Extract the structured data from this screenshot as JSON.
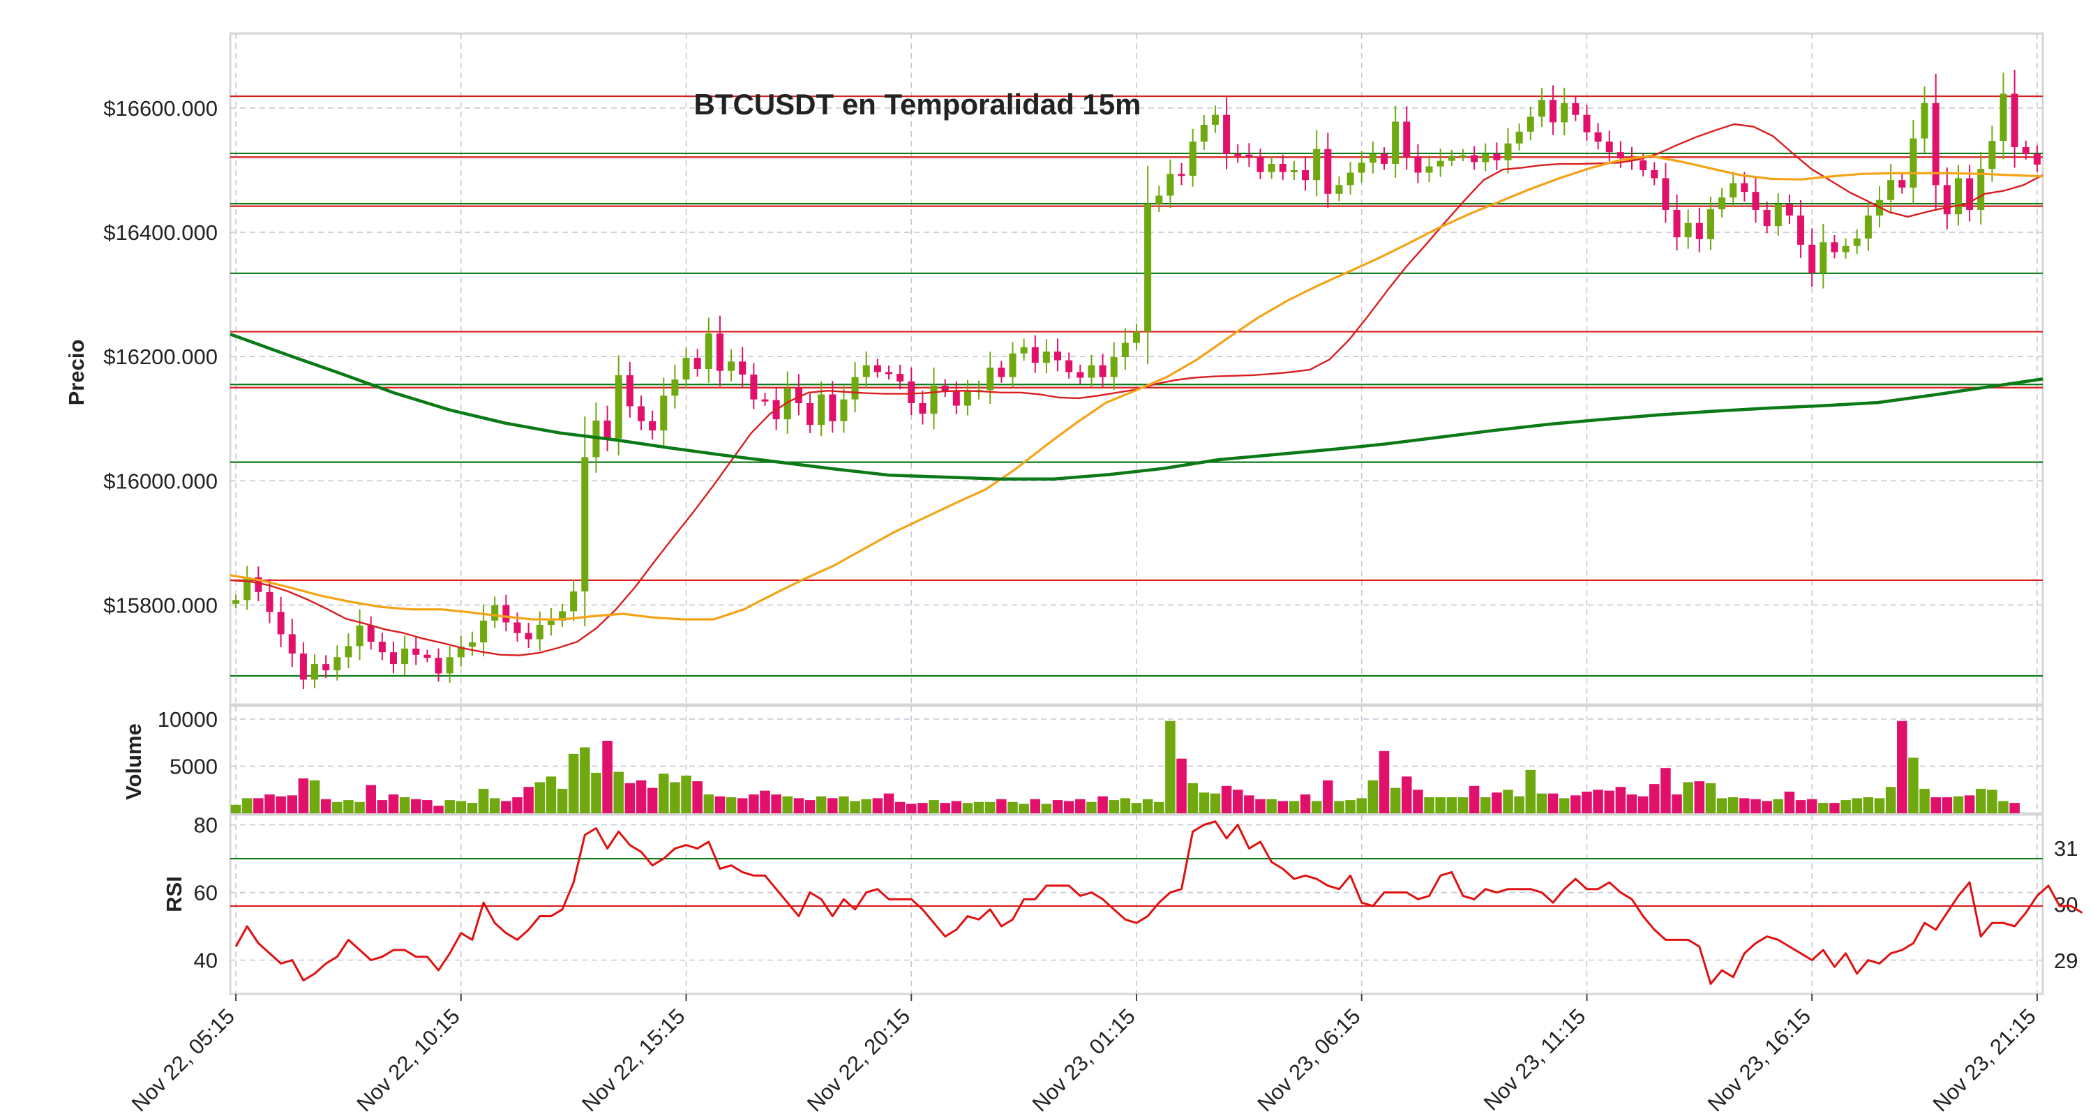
{
  "colors": {
    "bull": "#6fa80f",
    "bear": "#e0106b",
    "sma_fast": "#d81e1e",
    "sma_mid": "#f5a316",
    "sma_slow": "#0b7a16",
    "support": "#0b7a16",
    "resistance": "#d81e1e",
    "rsi": "#e01010",
    "grid": "#c8c8d8"
  },
  "chart_data": [
    {
      "type": "candlestick",
      "title": "BTCUSDT en Temporalidad 15m",
      "ylabel": "Precio",
      "ylim": [
        15640,
        16720
      ],
      "yticks": [
        15800,
        16000,
        16200,
        16400,
        16600
      ],
      "ytick_labels": [
        "$15800.000",
        "$16000.000",
        "$16200.000",
        "$16400.000",
        "$16600.000"
      ],
      "x_ticks": [
        {
          "index": 0,
          "label": "Nov 22, 05:15"
        },
        {
          "index": 20,
          "label": "Nov 22, 10:15"
        },
        {
          "index": 40,
          "label": "Nov 22, 15:15"
        },
        {
          "index": 60,
          "label": "Nov 22, 20:15"
        },
        {
          "index": 80,
          "label": "Nov 23, 01:15"
        },
        {
          "index": 100,
          "label": "Nov 23, 06:15"
        },
        {
          "index": 120,
          "label": "Nov 23, 11:15"
        },
        {
          "index": 140,
          "label": "Nov 23, 16:15"
        },
        {
          "index": 160,
          "label": "Nov 23, 21:15"
        }
      ],
      "close": [
        15808,
        15845,
        15821,
        15789,
        15753,
        15722,
        15680,
        15705,
        15695,
        15716,
        15734,
        15767,
        15741,
        15724,
        15705,
        15730,
        15720,
        15715,
        15690,
        15716,
        15733,
        15740,
        15775,
        15800,
        15772,
        15755,
        15745,
        15768,
        15775,
        15790,
        15822,
        16038,
        16097,
        16068,
        16170,
        16120,
        16096,
        16081,
        16137,
        16163,
        16198,
        16180,
        16237,
        16177,
        16192,
        16171,
        16131,
        16130,
        16099,
        16149,
        16125,
        16090,
        16139,
        16096,
        16131,
        16167,
        16186,
        16175,
        16172,
        16160,
        16125,
        16108,
        16153,
        16144,
        16121,
        16144,
        16146,
        16182,
        16167,
        16205,
        16215,
        16190,
        16208,
        16194,
        16175,
        16166,
        16186,
        16167,
        16199,
        16222,
        16240,
        16446,
        16459,
        16494,
        16491,
        16546,
        16573,
        16589,
        16526,
        16525,
        16521,
        16497,
        16510,
        16497,
        16500,
        16484,
        16534,
        16462,
        16476,
        16496,
        16512,
        16526,
        16510,
        16578,
        16522,
        16496,
        16506,
        16515,
        16523,
        16524,
        16513,
        16526,
        16516,
        16543,
        16562,
        16586,
        16613,
        16577,
        16608,
        16589,
        16561,
        16546,
        16529,
        16519,
        16516,
        16500,
        16487,
        16436,
        16392,
        16415,
        16389,
        16437,
        16456,
        16479,
        16465,
        16436,
        16410,
        16445,
        16427,
        16380,
        16335,
        16384,
        16368,
        16378,
        16390,
        16427,
        16452,
        16484,
        16472,
        16551,
        16608,
        16476,
        16429,
        16487,
        16436,
        16502,
        16547,
        16623,
        16537,
        16526,
        16509
      ],
      "series": [
        {
          "name": "SMA fast",
          "color_key": "sma_fast",
          "values": [
            15840,
            15838,
            15832,
            15822,
            15809,
            15794,
            15778,
            15770,
            15761,
            15755,
            15746,
            15739,
            15731,
            15725,
            15720,
            15719,
            15723,
            15731,
            15741,
            15763,
            15793,
            15829,
            15870,
            15910,
            15949,
            15990,
            16033,
            16076,
            16108,
            16128,
            16142,
            16145,
            16143,
            16141,
            16140,
            16140,
            16141,
            16144,
            16145,
            16144,
            16142,
            16142,
            16139,
            16134,
            16133,
            16137,
            16142,
            16147,
            16156,
            16162,
            16166,
            16168,
            16169,
            16170,
            16172,
            16175,
            16179,
            16195,
            16226,
            16265,
            16306,
            16345,
            16380,
            16416,
            16451,
            16484,
            16501,
            16504,
            16508,
            16510,
            16510,
            16511,
            16512,
            16517,
            16526,
            16540,
            16553,
            16564,
            16574,
            16570,
            16555,
            16528,
            16502,
            16483,
            16464,
            16449,
            16433,
            16425,
            16433,
            16440,
            16445,
            16462,
            16467,
            16476,
            16492
          ]
        },
        {
          "name": "SMA mid",
          "color_key": "sma_mid",
          "values": [
            15848,
            15840,
            15828,
            15815,
            15805,
            15797,
            15793,
            15793,
            15788,
            15782,
            15777,
            15777,
            15782,
            15786,
            15780,
            15777,
            15777,
            15793,
            15818,
            15842,
            15864,
            15891,
            15918,
            15941,
            15964,
            15986,
            16019,
            16057,
            16093,
            16126,
            16146,
            16167,
            16195,
            16229,
            16262,
            16290,
            16314,
            16336,
            16358,
            16382,
            16407,
            16429,
            16449,
            16469,
            16487,
            16503,
            16516,
            16523,
            16514,
            16503,
            16492,
            16486,
            16485,
            16490,
            16494,
            16495,
            16495,
            16495,
            16494,
            16492,
            16490
          ]
        },
        {
          "name": "SMA slow",
          "color_key": "sma_slow",
          "values": [
            16236,
            16204,
            16173,
            16141,
            16114,
            16093,
            16077,
            16066,
            16053,
            16041,
            16030,
            16019,
            16009,
            16006,
            16003,
            16003,
            16010,
            16020,
            16034,
            16042,
            16050,
            16059,
            16070,
            16081,
            16091,
            16099,
            16106,
            16112,
            16117,
            16121,
            16126,
            16138,
            16151,
            16164
          ]
        }
      ],
      "support_levels": [
        15686,
        16030,
        16155,
        16334,
        16446,
        16527
      ],
      "resistance_levels": [
        15840,
        16150,
        16240,
        16442,
        16521,
        16619
      ]
    },
    {
      "type": "bar",
      "ylabel": "Volume",
      "ylim": [
        0,
        11400
      ],
      "yticks": [
        5000,
        10000
      ],
      "ytick_labels": [
        "5000",
        "10000"
      ],
      "values": [
        900,
        1600,
        1600,
        2000,
        1800,
        1900,
        3700,
        3500,
        1500,
        1200,
        1400,
        1200,
        3000,
        1400,
        2000,
        1700,
        1500,
        1400,
        800,
        1400,
        1300,
        1100,
        2600,
        1600,
        1300,
        1700,
        2800,
        3300,
        3900,
        2600,
        6300,
        7000,
        4300,
        7700,
        4400,
        3200,
        3500,
        2700,
        4200,
        3300,
        4000,
        3400,
        2000,
        1800,
        1700,
        1600,
        2000,
        2400,
        2000,
        1800,
        1600,
        1400,
        1800,
        1600,
        1800,
        1300,
        1500,
        1600,
        2100,
        1200,
        1000,
        1100,
        1400,
        1100,
        1300,
        1100,
        1200,
        1200,
        1500,
        1200,
        1000,
        1500,
        1000,
        1400,
        1300,
        1500,
        1200,
        1800,
        1400,
        1600,
        1100,
        1500,
        1200,
        9800,
        5800,
        3200,
        2200,
        2100,
        2900,
        2500,
        1900,
        1500,
        1500,
        1300,
        1300,
        2000,
        1300,
        3500,
        1300,
        1400,
        1600,
        3500,
        6600,
        2700,
        3900,
        2500,
        1700,
        1700,
        1700,
        1700,
        2900,
        1700,
        2200,
        2500,
        1800,
        4600,
        2100,
        2100,
        1600,
        1900,
        2300,
        2500,
        2400,
        2800,
        2000,
        1800,
        3100,
        4800,
        2000,
        3300,
        3400,
        3200,
        1600,
        1700,
        1600,
        1500,
        1300,
        1500,
        2300,
        1400,
        1500,
        1100,
        1100,
        1400,
        1600,
        1700,
        1600,
        2800,
        9800,
        5900,
        2600,
        1700,
        1700,
        1800,
        1900,
        2600,
        2500,
        1300,
        1100
      ]
    },
    {
      "type": "line",
      "ylabel": "RSI",
      "ylim": [
        30,
        83
      ],
      "yticks": [
        40,
        60,
        80
      ],
      "ytick_labels": [
        "40",
        "60",
        "80"
      ],
      "right_ylim": [
        28.4,
        31.6
      ],
      "right_yticks": [
        29,
        30,
        31
      ],
      "right_ytick_labels": [
        "29",
        "30",
        "31"
      ],
      "upper_level": 70,
      "lower_level": 56,
      "values": [
        44,
        50,
        45,
        42,
        39,
        40,
        34,
        36,
        39,
        41,
        46,
        43,
        40,
        41,
        43,
        43,
        41,
        41,
        37,
        42,
        48,
        46,
        57,
        51,
        48,
        46,
        49,
        53,
        53,
        55,
        63,
        77,
        79,
        73,
        78,
        74,
        72,
        68,
        70,
        73,
        74,
        73,
        75,
        67,
        68,
        66,
        65,
        65,
        61,
        57,
        53,
        60,
        58,
        53,
        58,
        55,
        60,
        61,
        58,
        58,
        58,
        55,
        51,
        47,
        49,
        53,
        52,
        55,
        50,
        52,
        58,
        58,
        62,
        62,
        62,
        59,
        60,
        58,
        55,
        52,
        51,
        53,
        57,
        60,
        61,
        78,
        80,
        81,
        76,
        80,
        73,
        75,
        69,
        67,
        64,
        65,
        64,
        62,
        61,
        65,
        57,
        56,
        60,
        60,
        60,
        58,
        59,
        65,
        66,
        59,
        58,
        61,
        60,
        61,
        61,
        61,
        60,
        57,
        61,
        64,
        61,
        61,
        63,
        60,
        58,
        53,
        49,
        46,
        46,
        46,
        44,
        33,
        37,
        35,
        42,
        45,
        47,
        46,
        44,
        42,
        40,
        43,
        38,
        42,
        36,
        40,
        39,
        42,
        43,
        45,
        51,
        49,
        54,
        59,
        63,
        47,
        51,
        51,
        50,
        54,
        59,
        62,
        56,
        56,
        54
      ]
    }
  ]
}
